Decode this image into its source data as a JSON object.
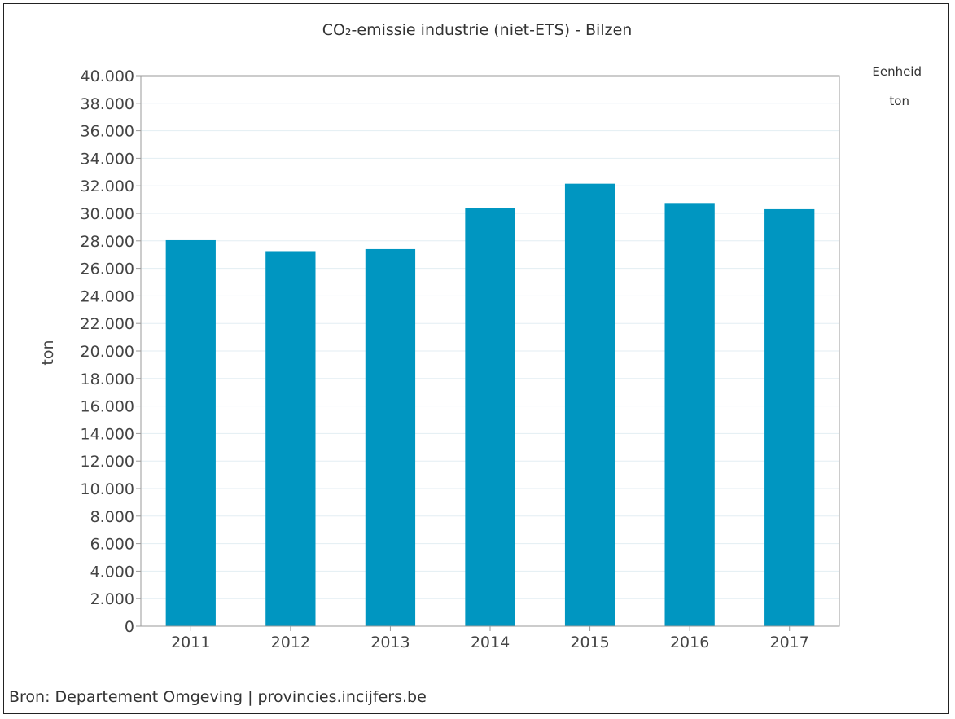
{
  "chart_data": {
    "type": "bar",
    "title": "CO₂-emissie industrie (niet-ETS) - Bilzen",
    "xlabel": "",
    "ylabel": "ton",
    "categories": [
      "2011",
      "2012",
      "2013",
      "2014",
      "2015",
      "2016",
      "2017"
    ],
    "values": [
      28050,
      27250,
      27400,
      30400,
      32150,
      30750,
      30300
    ],
    "ylim": [
      0,
      40000
    ],
    "yticks": [
      "0",
      "2.000",
      "4.000",
      "6.000",
      "8.000",
      "10.000",
      "12.000",
      "14.000",
      "16.000",
      "18.000",
      "20.000",
      "22.000",
      "24.000",
      "26.000",
      "28.000",
      "30.000",
      "32.000",
      "34.000",
      "36.000",
      "38.000",
      "40.000"
    ],
    "grid": true,
    "bar_color": "#0096c1",
    "grid_color": "#e3eef3"
  },
  "legend": {
    "heading": "Eenheid",
    "unit": "ton"
  },
  "source": "Bron: Departement Omgeving | provincies.incijfers.be"
}
